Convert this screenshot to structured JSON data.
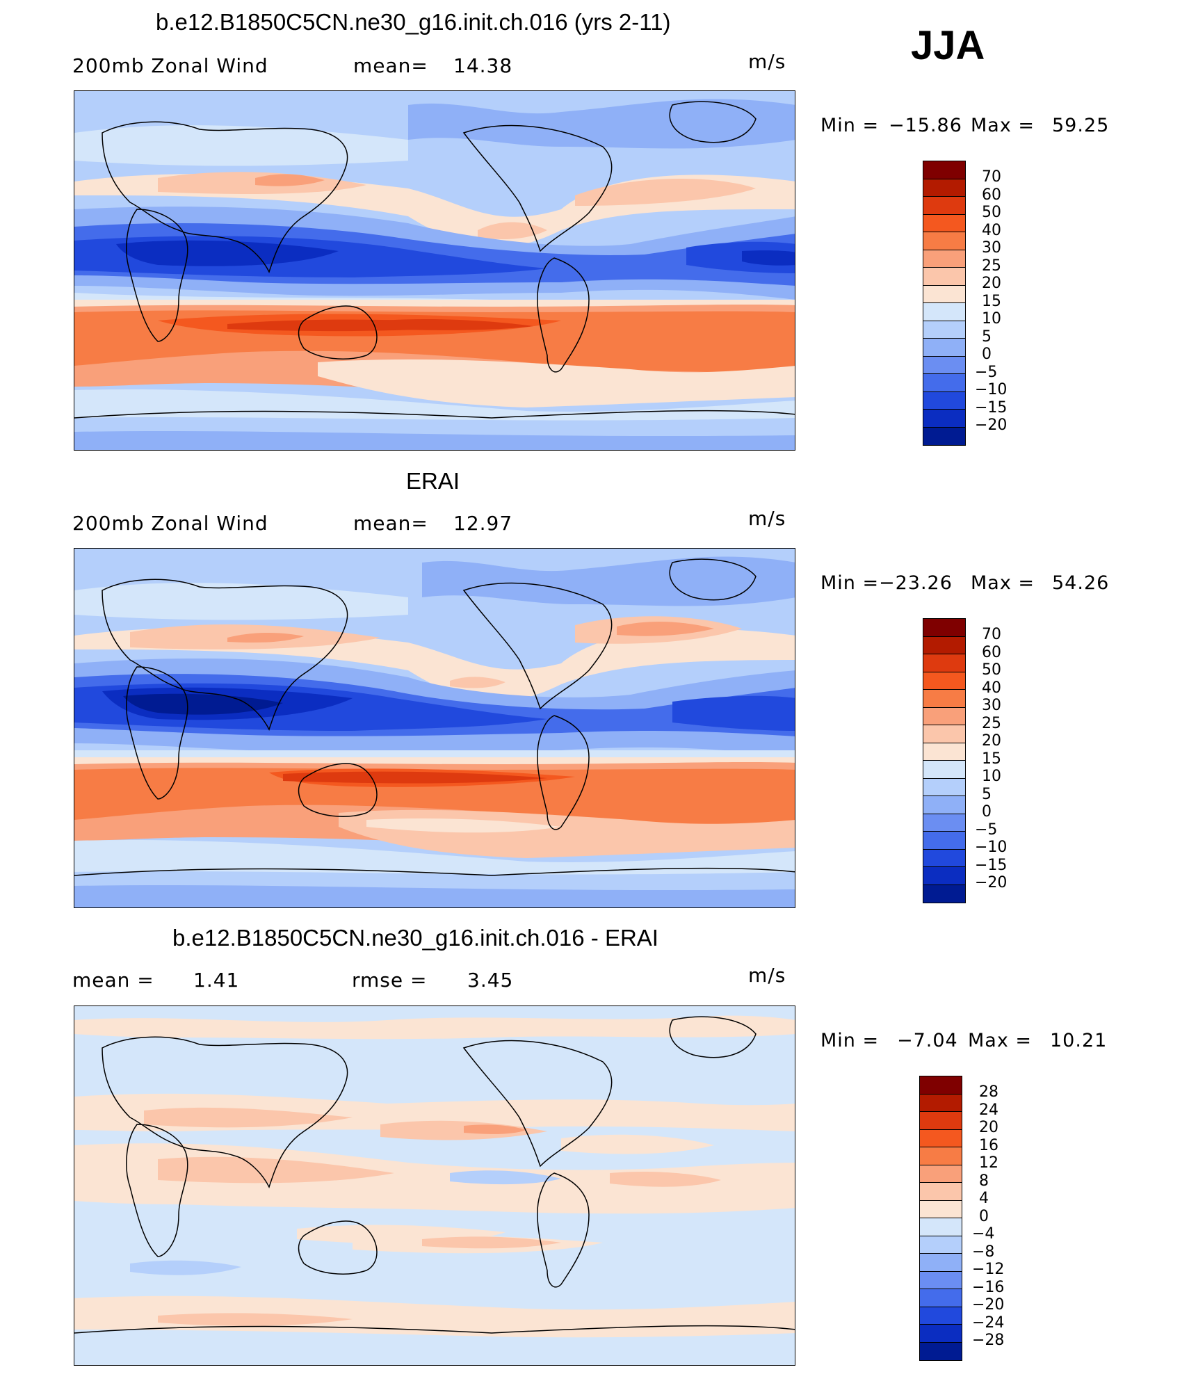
{
  "season": "JJA",
  "units": "m/s",
  "panels": [
    {
      "id": "model",
      "title": "b.e12.B1850C5CN.ne30_g16.init.ch.016 (yrs 2-11)",
      "left_label": "200mb Zonal Wind",
      "stat_label": "mean=",
      "stat_value": "14.38",
      "min_label": "Min =",
      "min_value": "−15.86",
      "max_label": "Max =",
      "max_value": "59.25",
      "colorbar_labels": [
        "70",
        "60",
        "50",
        "40",
        "30",
        "25",
        "20",
        "15",
        "10",
        "5",
        "0",
        "−5",
        "−10",
        "−15",
        "−20"
      ]
    },
    {
      "id": "obs",
      "title": "ERAI",
      "left_label": "200mb Zonal Wind",
      "stat_label": "mean=",
      "stat_value": "12.97",
      "min_label": "Min =",
      "min_value": "−23.26",
      "max_label": "Max =",
      "max_value": "54.26",
      "colorbar_labels": [
        "70",
        "60",
        "50",
        "40",
        "30",
        "25",
        "20",
        "15",
        "10",
        "5",
        "0",
        "−5",
        "−10",
        "−15",
        "−20"
      ]
    },
    {
      "id": "diff",
      "title": "b.e12.B1850C5CN.ne30_g16.init.ch.016 - ERAI",
      "left_label": "mean =",
      "left_value": "1.41",
      "stat_label": "rmse =",
      "stat_value": "3.45",
      "min_label": "Min =",
      "min_value": "−7.04",
      "max_label": "Max =",
      "max_value": "10.21",
      "colorbar_labels": [
        "28",
        "24",
        "20",
        "16",
        "12",
        "8",
        "4",
        "0",
        "−4",
        "−8",
        "−12",
        "−16",
        "−20",
        "−24",
        "−28"
      ]
    }
  ],
  "colors": {
    "field_palette": [
      "#7f0000",
      "#b31b00",
      "#de3a0f",
      "#f4581f",
      "#f77c45",
      "#f9a07a",
      "#fbc6ab",
      "#fbe4d3",
      "#d4e6fa",
      "#b4cffb",
      "#8fb0f7",
      "#6b8ef2",
      "#446ceb",
      "#2149dd",
      "#0b2dc1",
      "#001b92"
    ],
    "diff_palette": [
      "#7f0000",
      "#b31b00",
      "#de3a0f",
      "#f4581f",
      "#f77c45",
      "#f9a07a",
      "#fbc6ab",
      "#fbe4d3",
      "#d4e6fa",
      "#b4cffb",
      "#8fb0f7",
      "#6b8ef2",
      "#446ceb",
      "#2149dd",
      "#0b2dc1",
      "#001b92"
    ]
  }
}
